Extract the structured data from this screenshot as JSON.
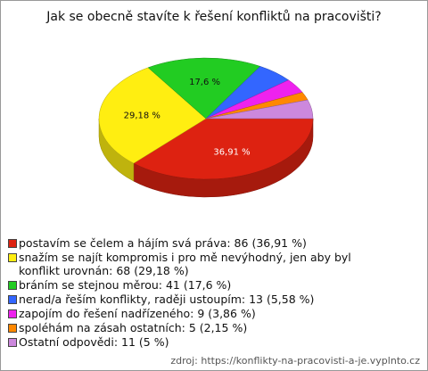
{
  "chart_data": {
    "type": "pie3d",
    "title": "Jak se obecně stavíte k řešení konfliktů na pracovišti?",
    "categories": [
      "postavím se čelem a hájím svá práva: 86 (36,91 %)",
      "snažím se najít kompromis i pro mě nevýhodný, jen aby byl konflikt urovnán: 68 (29,18 %)",
      "bráním se stejnou měrou: 41 (17,6 %)",
      "nerad/a řeším konflikty, raději ustoupím: 13 (5,58 %)",
      "zapojím do řešení nadřízeného: 9 (3,86 %)",
      "spoléhám na zásah ostatních: 5 (2,15 %)",
      "Ostatní odpovědi: 11 (5 %)"
    ],
    "values": [
      36.91,
      29.18,
      17.6,
      5.58,
      3.86,
      2.15,
      5
    ],
    "value_labels": [
      "36,91 %",
      "29,18 %",
      "17,6 %",
      null,
      null,
      null,
      null
    ],
    "colors": [
      "#dd2211",
      "#ffee11",
      "#22cc22",
      "#3366ff",
      "#ee22ee",
      "#ff8800",
      "#cc88dd"
    ],
    "source": "zdroj: https://konflikty-na-pracovisti-a-je.vyplnto.cz"
  }
}
